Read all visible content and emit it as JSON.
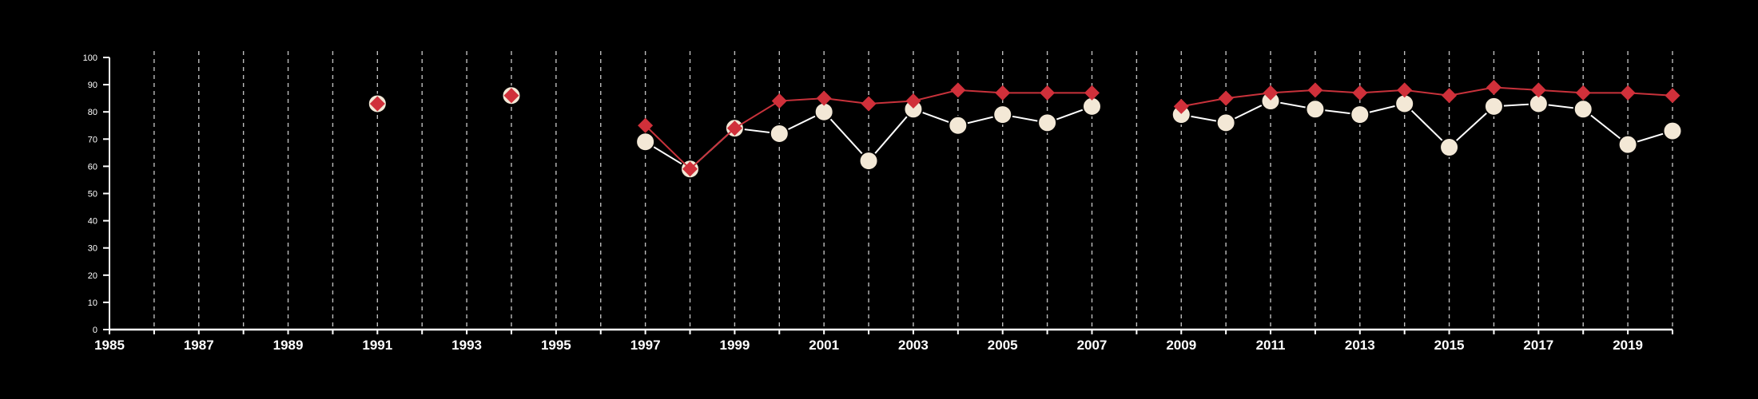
{
  "chart_data": {
    "type": "line",
    "title": "",
    "xlabel": "",
    "ylabel": "",
    "xlim": [
      1985,
      2020
    ],
    "ylim": [
      0,
      100
    ],
    "x_ticks": [
      1985,
      1987,
      1989,
      1991,
      1993,
      1995,
      1997,
      1999,
      2001,
      2003,
      2005,
      2007,
      2009,
      2011,
      2013,
      2015,
      2017,
      2019
    ],
    "y_ticks": [
      0,
      10,
      20,
      30,
      40,
      50,
      60,
      70,
      80,
      90,
      100
    ],
    "vertical_gridlines": "dashed, every year",
    "legend": "none",
    "series": [
      {
        "marker": "circle",
        "color": "#f3e8d6",
        "line_color": "#ffffff",
        "points": [
          [
            1991,
            83
          ],
          [
            1994,
            86
          ],
          [
            1997,
            69
          ],
          [
            1998,
            59
          ],
          [
            1999,
            74
          ],
          [
            2000,
            72
          ],
          [
            2001,
            80
          ],
          [
            2002,
            62
          ],
          [
            2003,
            81
          ],
          [
            2004,
            75
          ],
          [
            2005,
            79
          ],
          [
            2006,
            76
          ],
          [
            2007,
            82
          ],
          [
            2009,
            79
          ],
          [
            2010,
            76
          ],
          [
            2011,
            84
          ],
          [
            2012,
            81
          ],
          [
            2013,
            79
          ],
          [
            2014,
            83
          ],
          [
            2015,
            67
          ],
          [
            2016,
            82
          ],
          [
            2017,
            83
          ],
          [
            2018,
            81
          ],
          [
            2019,
            68
          ],
          [
            2020,
            73
          ]
        ]
      },
      {
        "marker": "diamond",
        "color": "#d0303a",
        "line_color": "#c8323b",
        "points": [
          [
            1991,
            83
          ],
          [
            1994,
            86
          ],
          [
            1997,
            75
          ],
          [
            1998,
            59
          ],
          [
            1999,
            74
          ],
          [
            2000,
            84
          ],
          [
            2001,
            85
          ],
          [
            2002,
            83
          ],
          [
            2003,
            84
          ],
          [
            2004,
            88
          ],
          [
            2005,
            87
          ],
          [
            2006,
            87
          ],
          [
            2007,
            87
          ],
          [
            2009,
            82
          ],
          [
            2010,
            85
          ],
          [
            2011,
            87
          ],
          [
            2012,
            88
          ],
          [
            2013,
            87
          ],
          [
            2014,
            88
          ],
          [
            2015,
            86
          ],
          [
            2016,
            89
          ],
          [
            2017,
            88
          ],
          [
            2018,
            87
          ],
          [
            2019,
            87
          ],
          [
            2020,
            86
          ]
        ]
      }
    ]
  }
}
